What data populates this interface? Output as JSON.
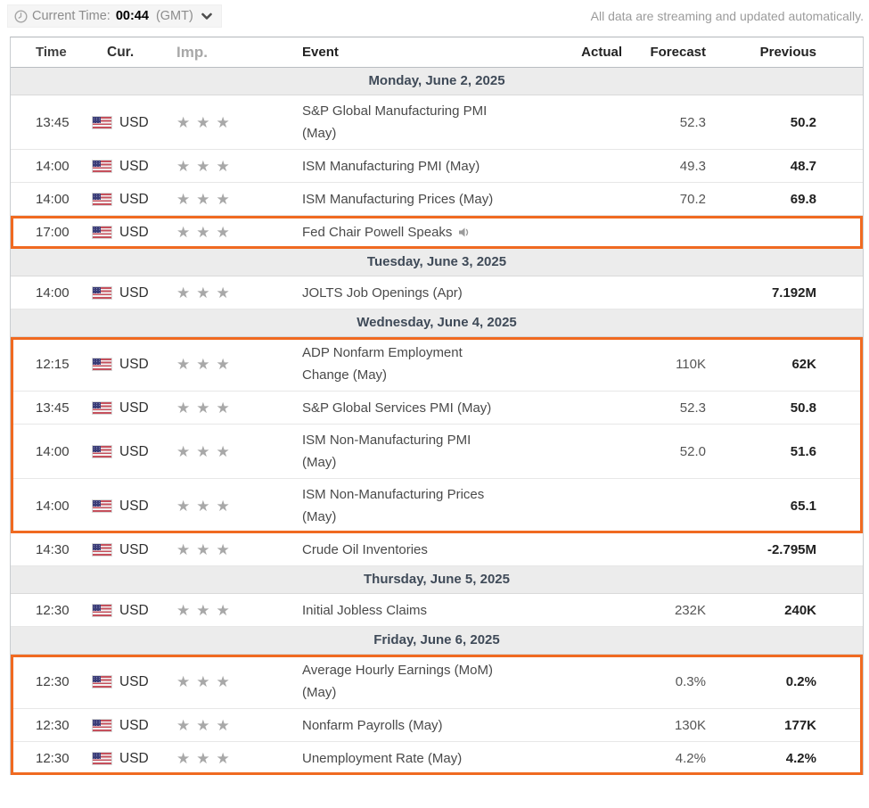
{
  "toolbar": {
    "clock_icon": "clock-icon",
    "current_time_label": "Current Time:",
    "current_time_value": "00:44",
    "timezone_label": "(GMT)",
    "timezone_dropdown_icon": "chevron-down-icon",
    "streaming_note": "All data are streaming and updated automatically."
  },
  "table": {
    "columns": {
      "time": "Time",
      "currency": "Cur.",
      "importance": "Imp.",
      "event": "Event",
      "actual": "Actual",
      "forecast": "Forecast",
      "previous": "Previous"
    },
    "sections": [
      {
        "date": "Monday, June 2, 2025",
        "rows": [
          {
            "time": "13:45",
            "currency": "USD",
            "importance": 3,
            "event": "S&P Global Manufacturing PMI\n(May)",
            "actual": "",
            "forecast": "52.3",
            "previous": "50.2",
            "highlight": false,
            "speaker": false
          },
          {
            "time": "14:00",
            "currency": "USD",
            "importance": 3,
            "event": "ISM Manufacturing PMI (May)",
            "actual": "",
            "forecast": "49.3",
            "previous": "48.7",
            "highlight": false,
            "speaker": false
          },
          {
            "time": "14:00",
            "currency": "USD",
            "importance": 3,
            "event": "ISM Manufacturing Prices (May)",
            "actual": "",
            "forecast": "70.2",
            "previous": "69.8",
            "highlight": false,
            "speaker": false
          },
          {
            "time": "17:00",
            "currency": "USD",
            "importance": 3,
            "event": "Fed Chair Powell Speaks",
            "actual": "",
            "forecast": "",
            "previous": "",
            "highlight": true,
            "speaker": true
          }
        ]
      },
      {
        "date": "Tuesday, June 3, 2025",
        "rows": [
          {
            "time": "14:00",
            "currency": "USD",
            "importance": 3,
            "event": "JOLTS Job Openings (Apr)",
            "actual": "",
            "forecast": "",
            "previous": "7.192M",
            "highlight": false,
            "speaker": false
          }
        ]
      },
      {
        "date": "Wednesday, June 4, 2025",
        "rows": [
          {
            "time": "12:15",
            "currency": "USD",
            "importance": 3,
            "event": "ADP Nonfarm Employment\nChange (May)",
            "actual": "",
            "forecast": "110K",
            "previous": "62K",
            "highlight": true,
            "speaker": false
          },
          {
            "time": "13:45",
            "currency": "USD",
            "importance": 3,
            "event": "S&P Global Services PMI (May)",
            "actual": "",
            "forecast": "52.3",
            "previous": "50.8",
            "highlight": true,
            "speaker": false
          },
          {
            "time": "14:00",
            "currency": "USD",
            "importance": 3,
            "event": "ISM Non-Manufacturing PMI\n(May)",
            "actual": "",
            "forecast": "52.0",
            "previous": "51.6",
            "highlight": true,
            "speaker": false
          },
          {
            "time": "14:00",
            "currency": "USD",
            "importance": 3,
            "event": "ISM Non-Manufacturing Prices\n(May)",
            "actual": "",
            "forecast": "",
            "previous": "65.1",
            "highlight": true,
            "speaker": false
          },
          {
            "time": "14:30",
            "currency": "USD",
            "importance": 3,
            "event": "Crude Oil Inventories",
            "actual": "",
            "forecast": "",
            "previous": "-2.795M",
            "highlight": false,
            "speaker": false
          }
        ]
      },
      {
        "date": "Thursday, June 5, 2025",
        "rows": [
          {
            "time": "12:30",
            "currency": "USD",
            "importance": 3,
            "event": "Initial Jobless Claims",
            "actual": "",
            "forecast": "232K",
            "previous": "240K",
            "highlight": false,
            "speaker": false
          }
        ]
      },
      {
        "date": "Friday, June 6, 2025",
        "rows": [
          {
            "time": "12:30",
            "currency": "USD",
            "importance": 3,
            "event": "Average Hourly Earnings (MoM)\n(May)",
            "actual": "",
            "forecast": "0.3%",
            "previous": "0.2%",
            "highlight": true,
            "speaker": false
          },
          {
            "time": "12:30",
            "currency": "USD",
            "importance": 3,
            "event": "Nonfarm Payrolls (May)",
            "actual": "",
            "forecast": "130K",
            "previous": "177K",
            "highlight": true,
            "speaker": false
          },
          {
            "time": "12:30",
            "currency": "USD",
            "importance": 3,
            "event": "Unemployment Rate (May)",
            "actual": "",
            "forecast": "4.2%",
            "previous": "4.2%",
            "highlight": true,
            "speaker": false
          }
        ]
      }
    ]
  },
  "icons": {
    "star": "★",
    "flag": "us-flag-icon",
    "speaker": "speaker-icon"
  },
  "colors": {
    "highlight_border": "#f06a21",
    "star_gray": "#a8a8a8",
    "day_header_bg": "#ececec",
    "day_header_text": "#3f4a58"
  }
}
